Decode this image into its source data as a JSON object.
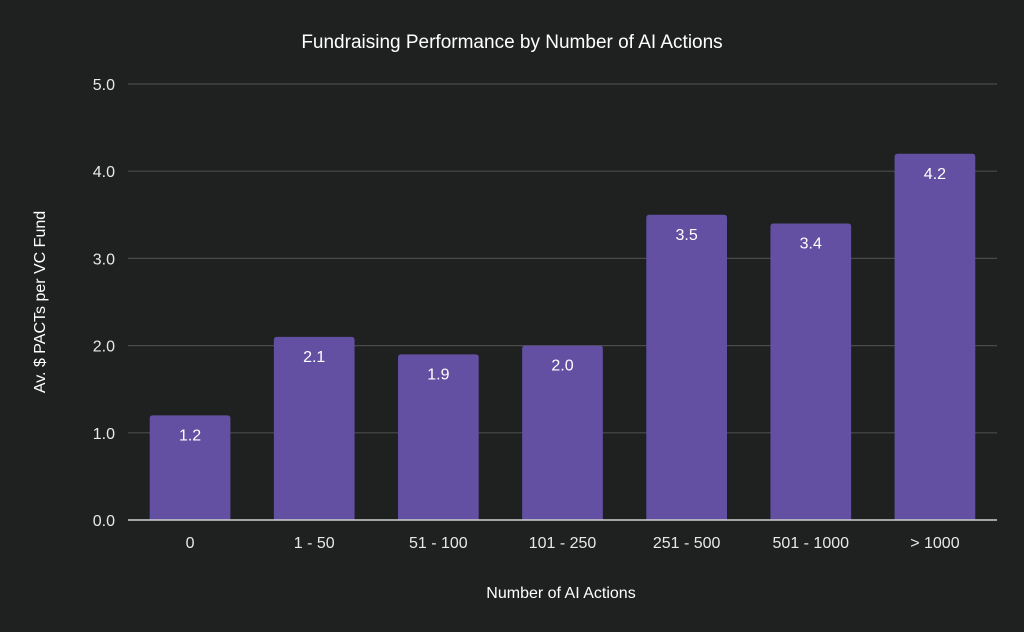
{
  "chart_data": {
    "type": "bar",
    "title": "Fundraising Performance by Number of AI Actions",
    "xlabel": "Number of AI Actions",
    "ylabel": "Av. $ PACTs per VC Fund",
    "categories": [
      "0",
      "1 - 50",
      "51 - 100",
      "101 - 250",
      "251 - 500",
      "501 - 1000",
      "> 1000"
    ],
    "values": [
      1.2,
      2.1,
      1.9,
      2.0,
      3.5,
      3.4,
      4.2
    ],
    "data_labels": [
      "1.2",
      "2.1",
      "1.9",
      "2.0",
      "3.5",
      "3.4",
      "4.2"
    ],
    "ylim": [
      0,
      5
    ],
    "yticks": [
      0,
      1,
      2,
      3,
      4,
      5
    ],
    "ytick_labels": [
      "0.0",
      "1.0",
      "2.0",
      "3.0",
      "4.0",
      "5.0"
    ],
    "grid": true,
    "legend": "none",
    "colors": {
      "bar": "#6350a3",
      "background": "#1f2020"
    }
  }
}
